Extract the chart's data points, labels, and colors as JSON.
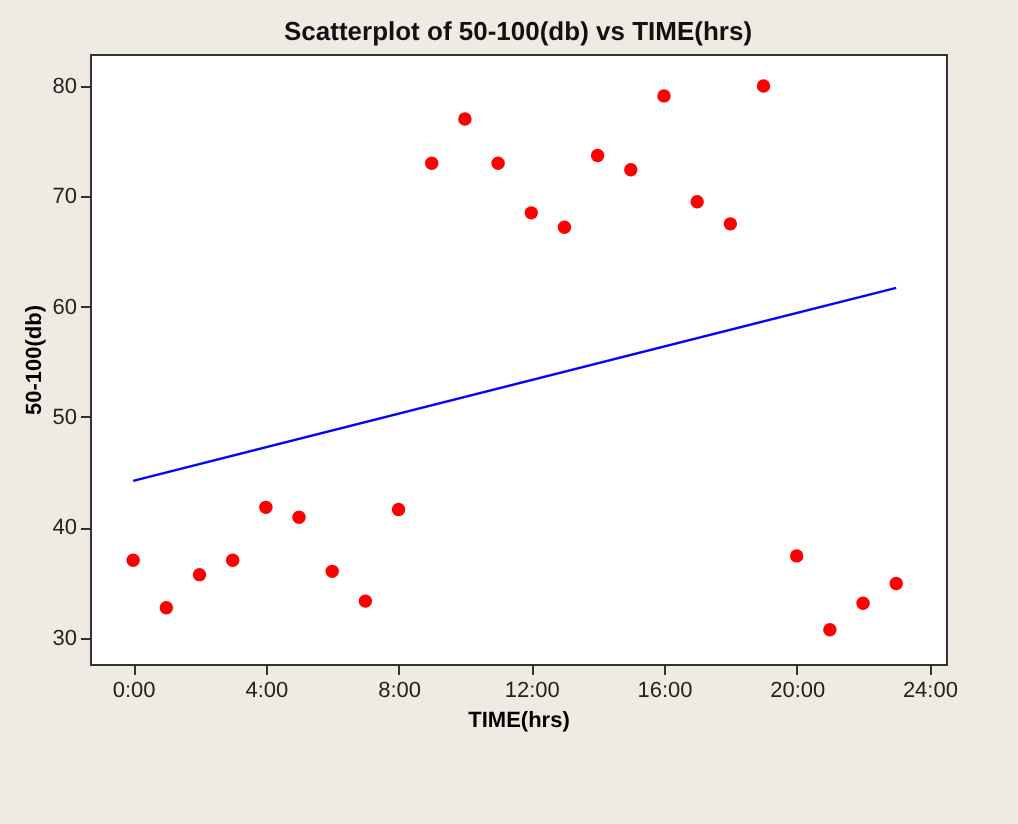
{
  "chart_data": {
    "type": "scatter",
    "title": "Scatterplot of 50-100(db) vs TIME(hrs)",
    "xlabel": "TIME(hrs)",
    "ylabel": "50-100(db)",
    "x": [
      0,
      1,
      2,
      3,
      4,
      5,
      6,
      7,
      8,
      9,
      10,
      11,
      12,
      13,
      14,
      15,
      16,
      17,
      18,
      19,
      20,
      21,
      22,
      23
    ],
    "series": [
      {
        "color": "#ff0000",
        "marker": "circle",
        "values": [
          37,
          32.7,
          35.7,
          37,
          41.8,
          40.9,
          36,
          33.3,
          41.6,
          73,
          77,
          73,
          68.5,
          67.2,
          73.7,
          72.4,
          79.1,
          69.5,
          67.5,
          80,
          37.4,
          30.7,
          33.1,
          34.9
        ]
      },
      {
        "type": "line",
        "color": "#0000ff",
        "marker": "none",
        "x": [
          0,
          23
        ],
        "values": [
          44.2,
          61.7
        ]
      }
    ],
    "xlim": [
      -1.3,
      24.5
    ],
    "ylim": [
      27.6,
      82.9
    ],
    "xticks": [
      {
        "value": 0,
        "label": "0:00"
      },
      {
        "value": 4,
        "label": "4:00"
      },
      {
        "value": 8,
        "label": "8:00"
      },
      {
        "value": 12,
        "label": "12:00"
      },
      {
        "value": 16,
        "label": "16:00"
      },
      {
        "value": 20,
        "label": "20:00"
      },
      {
        "value": 24,
        "label": "24:00"
      }
    ],
    "yticks": [
      30,
      40,
      50,
      60,
      70,
      80
    ],
    "grid": false
  }
}
